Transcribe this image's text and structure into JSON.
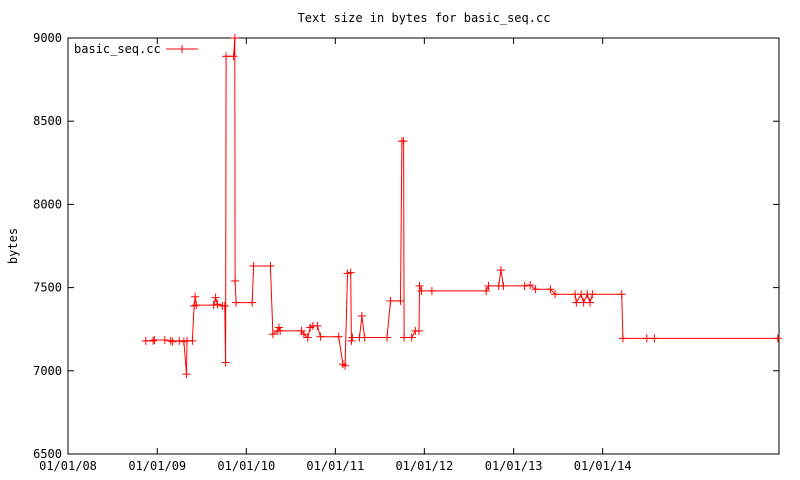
{
  "chart_data": {
    "type": "line",
    "title": "Text size in bytes for basic_seq.cc",
    "xlabel": "",
    "ylabel": "bytes",
    "x_axis": "date",
    "xlim": [
      "2008-01-01",
      "2015-12-25"
    ],
    "ylim": [
      6500,
      9000
    ],
    "yticks": [
      6500,
      7000,
      7500,
      8000,
      8500,
      9000
    ],
    "xticks": [
      {
        "date": "2008-01-01",
        "label": "01/01/08"
      },
      {
        "date": "2009-01-01",
        "label": "01/01/09"
      },
      {
        "date": "2010-01-01",
        "label": "01/01/10"
      },
      {
        "date": "2011-01-01",
        "label": "01/01/11"
      },
      {
        "date": "2012-01-01",
        "label": "01/01/12"
      },
      {
        "date": "2013-01-01",
        "label": "01/01/13"
      },
      {
        "date": "2014-01-01",
        "label": "01/01/14"
      }
    ],
    "grid": false,
    "legend": {
      "position": "top-left"
    },
    "series_color": "#ff0000",
    "series": [
      {
        "name": "basic_seq.cc",
        "points": [
          [
            "2008-11-15",
            7180
          ],
          [
            "2008-12-15",
            7180
          ],
          [
            "2008-12-20",
            7185
          ],
          [
            "2009-02-01",
            7185
          ],
          [
            "2009-02-25",
            7180
          ],
          [
            "2009-03-05",
            7175
          ],
          [
            "2009-04-01",
            7180
          ],
          [
            "2009-04-20",
            7175
          ],
          [
            "2009-05-01",
            6980
          ],
          [
            "2009-05-03",
            7180
          ],
          [
            "2009-05-25",
            7180
          ],
          [
            "2009-06-01",
            7390
          ],
          [
            "2009-06-05",
            7445
          ],
          [
            "2009-06-10",
            7395
          ],
          [
            "2009-08-20",
            7395
          ],
          [
            "2009-08-28",
            7440
          ],
          [
            "2009-09-05",
            7400
          ],
          [
            "2009-09-25",
            7390
          ],
          [
            "2009-10-05",
            7390
          ],
          [
            "2009-10-08",
            7050
          ],
          [
            "2009-10-10",
            8890
          ],
          [
            "2009-11-10",
            8890
          ],
          [
            "2009-11-15",
            9000
          ],
          [
            "2009-11-16",
            7540
          ],
          [
            "2009-11-20",
            7410
          ],
          [
            "2010-01-25",
            7410
          ],
          [
            "2010-01-31",
            7630
          ],
          [
            "2010-04-10",
            7630
          ],
          [
            "2010-04-20",
            7220
          ],
          [
            "2010-05-10",
            7240
          ],
          [
            "2010-05-15",
            7260
          ],
          [
            "2010-05-20",
            7240
          ],
          [
            "2010-08-15",
            7240
          ],
          [
            "2010-08-25",
            7220
          ],
          [
            "2010-09-10",
            7200
          ],
          [
            "2010-09-20",
            7260
          ],
          [
            "2010-10-01",
            7270
          ],
          [
            "2010-10-20",
            7270
          ],
          [
            "2010-11-01",
            7205
          ],
          [
            "2011-01-15",
            7205
          ],
          [
            "2011-02-01",
            7040
          ],
          [
            "2011-02-10",
            7030
          ],
          [
            "2011-02-20",
            7585
          ],
          [
            "2011-03-05",
            7590
          ],
          [
            "2011-03-08",
            7180
          ],
          [
            "2011-03-12",
            7200
          ],
          [
            "2011-04-10",
            7200
          ],
          [
            "2011-04-20",
            7330
          ],
          [
            "2011-05-01",
            7200
          ],
          [
            "2011-08-01",
            7200
          ],
          [
            "2011-08-15",
            7420
          ],
          [
            "2011-09-25",
            7420
          ],
          [
            "2011-10-01",
            8380
          ],
          [
            "2011-10-08",
            8380
          ],
          [
            "2011-10-10",
            7200
          ],
          [
            "2011-11-10",
            7200
          ],
          [
            "2011-11-25",
            7240
          ],
          [
            "2011-12-10",
            7240
          ],
          [
            "2011-12-12",
            7510
          ],
          [
            "2011-12-20",
            7480
          ],
          [
            "2012-02-01",
            7480
          ],
          [
            "2012-09-10",
            7480
          ],
          [
            "2012-09-20",
            7510
          ],
          [
            "2012-11-01",
            7510
          ],
          [
            "2012-11-10",
            7605
          ],
          [
            "2012-11-20",
            7510
          ],
          [
            "2013-02-15",
            7510
          ],
          [
            "2013-03-10",
            7515
          ],
          [
            "2013-04-01",
            7490
          ],
          [
            "2013-06-01",
            7490
          ],
          [
            "2013-06-20",
            7460
          ],
          [
            "2013-09-10",
            7460
          ],
          [
            "2013-09-15",
            7410
          ],
          [
            "2013-10-05",
            7460
          ],
          [
            "2013-10-15",
            7410
          ],
          [
            "2013-10-30",
            7460
          ],
          [
            "2013-11-10",
            7410
          ],
          [
            "2013-11-20",
            7460
          ],
          [
            "2014-03-20",
            7460
          ],
          [
            "2014-03-25",
            7195
          ],
          [
            "2014-07-01",
            7195
          ],
          [
            "2014-08-01",
            7195
          ],
          [
            "2015-12-20",
            7195
          ]
        ]
      }
    ]
  }
}
